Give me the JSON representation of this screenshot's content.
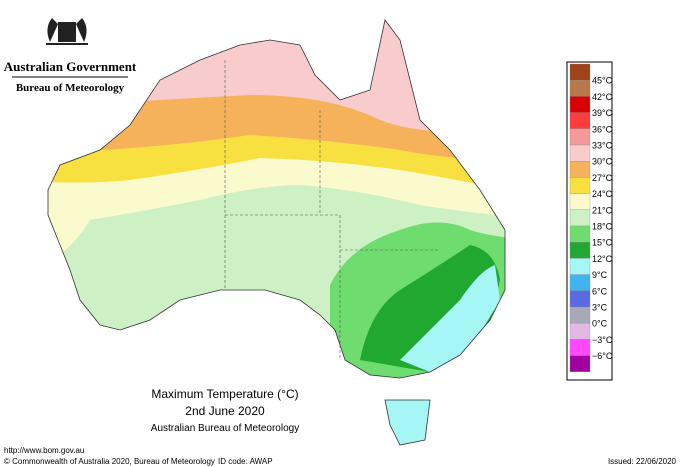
{
  "header": {
    "agency": "Australian Government",
    "bureau": "Bureau of Meteorology"
  },
  "map": {
    "title": "Maximum Temperature (°C)",
    "date": "2nd June 2020",
    "source": "Australian Bureau of Meteorology"
  },
  "legend": {
    "labels": [
      "45°C",
      "42°C",
      "39°C",
      "36°C",
      "33°C",
      "30°C",
      "27°C",
      "24°C",
      "21°C",
      "18°C",
      "15°C",
      "12°C",
      "9°C",
      "6°C",
      "3°C",
      "0°C",
      "−3°C",
      "−6°C"
    ],
    "colors": [
      "#a0421a",
      "#b8794a",
      "#d80000",
      "#ff3c3c",
      "#f49a9a",
      "#f8cccc",
      "#f6b25a",
      "#f8e040",
      "#fafacc",
      "#cdf0c4",
      "#6edc6e",
      "#20a830",
      "#a6f6f6",
      "#40b4f0",
      "#5a6ae0",
      "#a8a8b8",
      "#e4b8e4",
      "#ff48ff",
      "#a000a0"
    ]
  },
  "footer": {
    "url": "http://www.bom.gov.au",
    "copyright": "© Commonwealth of Australia 2020, Bureau of Meteorology",
    "id_code": "ID code: AWAP",
    "issued": "Issued: 22/06/2020"
  }
}
